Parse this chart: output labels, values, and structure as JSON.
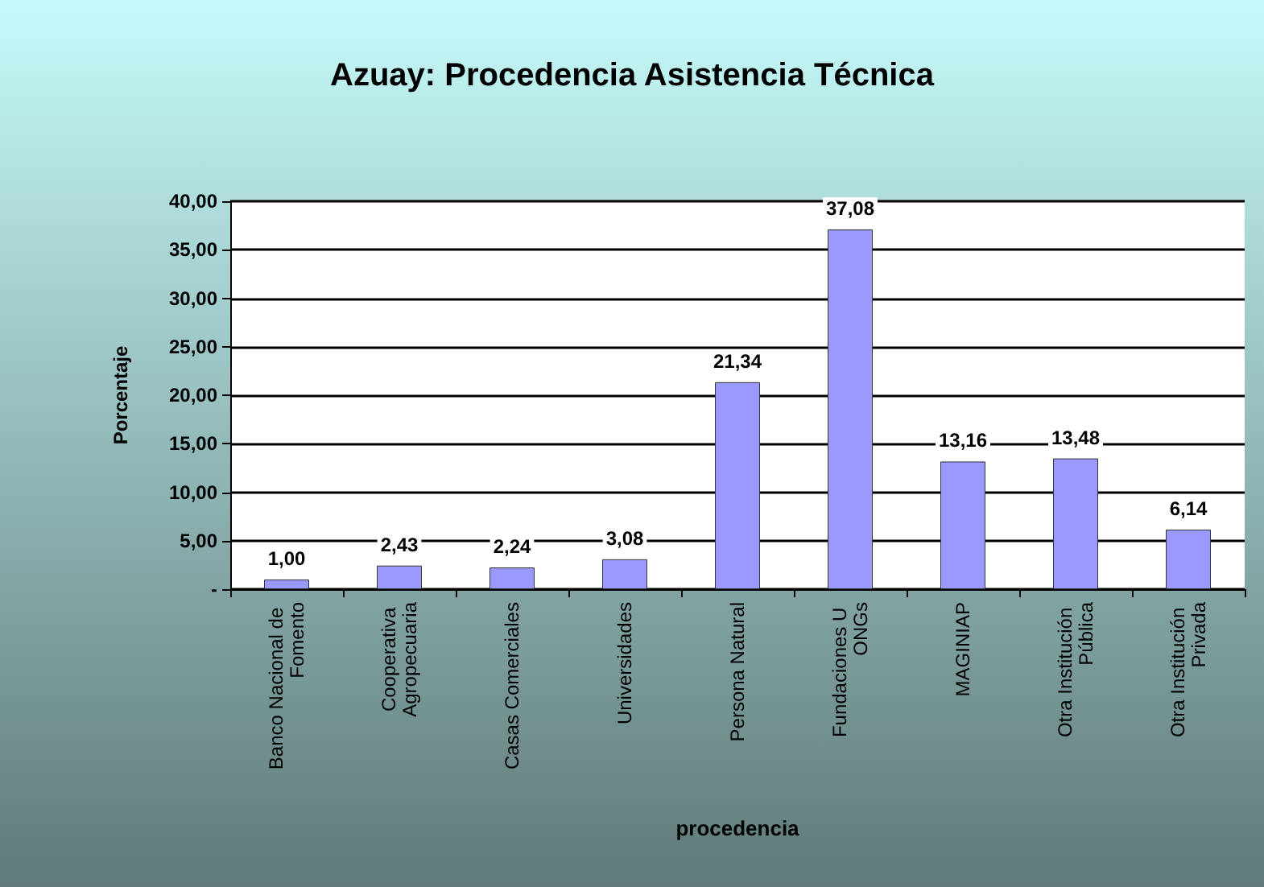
{
  "chart_data": {
    "type": "bar",
    "title": "Azuay: Procedencia Asistencia Técnica",
    "xlabel": "procedencia",
    "ylabel": "Porcentaje",
    "categories": [
      "Banco Nacional de Fomento",
      "Cooperativa Agropecuaria",
      "Casas Comerciales",
      "Universidades",
      "Persona Natural",
      "Fundaciones U ONGs",
      "MAGINIAP",
      "Otra Institución Pública",
      "Otra Institución Privada"
    ],
    "values": [
      1.0,
      2.43,
      2.24,
      3.08,
      21.34,
      37.08,
      13.16,
      13.48,
      6.14
    ],
    "value_labels": [
      "1,00",
      "2,43",
      "2,24",
      "3,08",
      "21,34",
      "37,08",
      "13,16",
      "13,48",
      "6,14"
    ],
    "color": "#9999ff",
    "ylim": [
      0,
      40
    ],
    "yticks": [
      {
        "value": 0,
        "label": "-"
      },
      {
        "value": 5,
        "label": "5,00"
      },
      {
        "value": 10,
        "label": "10,00"
      },
      {
        "value": 15,
        "label": "15,00"
      },
      {
        "value": 20,
        "label": "20,00"
      },
      {
        "value": 25,
        "label": "25,00"
      },
      {
        "value": 30,
        "label": "30,00"
      },
      {
        "value": 35,
        "label": "35,00"
      },
      {
        "value": 40,
        "label": "40,00"
      }
    ],
    "grid": "y"
  }
}
